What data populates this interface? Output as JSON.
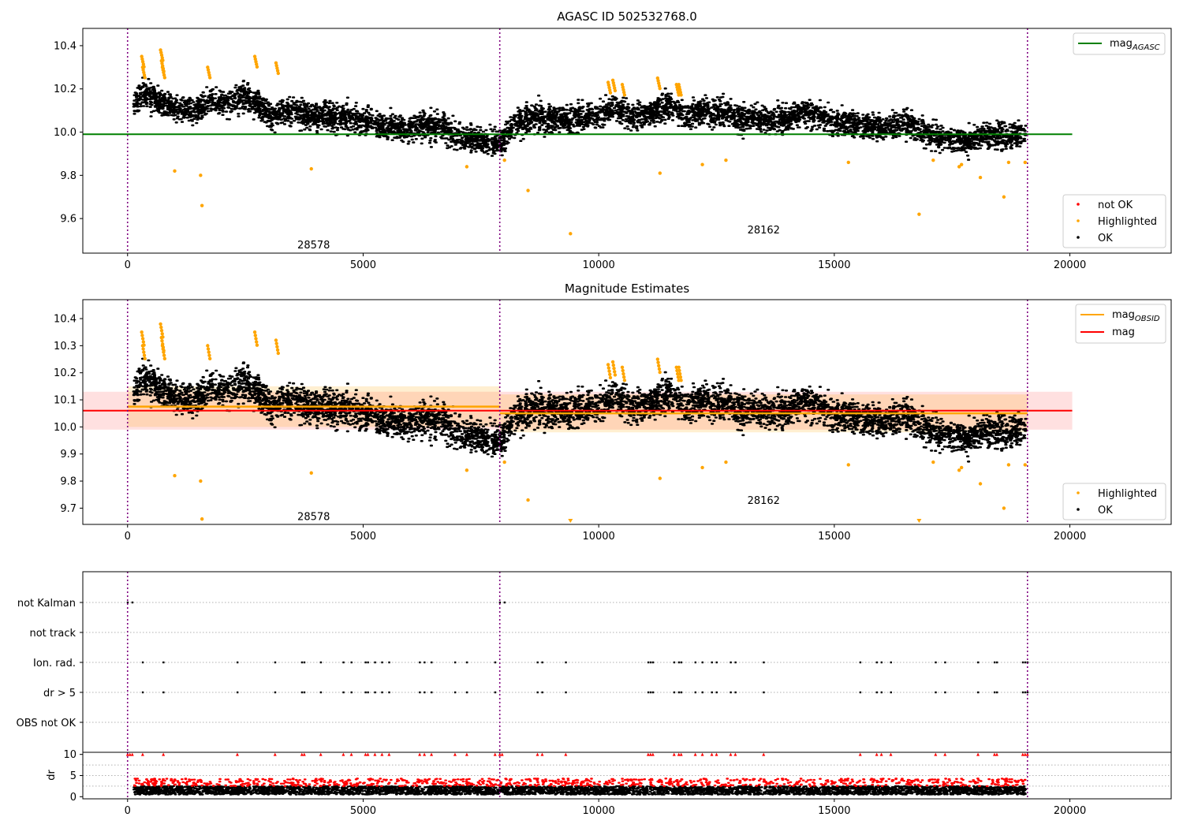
{
  "chart_data": [
    {
      "type": "scatter",
      "title": "AGASC ID 502532768.0",
      "xlim": [
        -950,
        22150
      ],
      "ylim": [
        9.44,
        10.48
      ],
      "xticks": [
        0,
        5000,
        10000,
        15000,
        20000
      ],
      "yticks": [
        9.6,
        9.8,
        10.0,
        10.2,
        10.4
      ],
      "xtick_labels": [
        "0",
        "5000",
        "10000",
        "15000",
        "20000"
      ],
      "ytick_labels": [
        "9.6",
        "9.8",
        "10.0",
        "10.2",
        "10.4"
      ],
      "obsid_boundaries": [
        0,
        7900,
        19100
      ],
      "obsid_labels": [
        {
          "text": "28578",
          "x": 3950,
          "y": 9.48
        },
        {
          "text": "28162",
          "x": 13500,
          "y": 9.55
        }
      ],
      "mag_agasc": {
        "value": 9.99,
        "x_range": [
          -950,
          20050
        ],
        "color": "#008000"
      },
      "legend_lines": [
        {
          "name": "mag_AGASC",
          "base": "mag",
          "sub": "AGASC",
          "color": "#008000"
        }
      ],
      "legend_points": [
        {
          "name": "not OK",
          "color": "#ff0000"
        },
        {
          "name": "Highlighted",
          "color": "#ffa500"
        },
        {
          "name": "OK",
          "color": "#000000"
        }
      ],
      "series_ok": {
        "name": "OK",
        "color": "#000000",
        "x": [
          0,
          300,
          600,
          900,
          1200,
          1500,
          1800,
          2100,
          2400,
          2700,
          3000,
          3300,
          3600,
          3900,
          4200,
          4500,
          4800,
          5100,
          5400,
          5700,
          6000,
          6300,
          6600,
          6900,
          7200,
          7500,
          7900,
          8200,
          8500,
          8800,
          9100,
          9400,
          9700,
          10000,
          10300,
          10600,
          10900,
          11200,
          11500,
          11800,
          12100,
          12400,
          12700,
          13000,
          13300,
          13600,
          13900,
          14200,
          14500,
          14800,
          15100,
          15400,
          15700,
          16000,
          16300,
          16600,
          16900,
          17200,
          17500,
          17800,
          18100,
          18400,
          18700,
          19100
        ],
        "y": [
          10.08,
          10.17,
          10.12,
          10.11,
          10.1,
          10.11,
          10.15,
          10.13,
          10.14,
          10.12,
          10.07,
          10.1,
          10.09,
          10.07,
          10.06,
          10.05,
          10.04,
          10.05,
          10.03,
          10.02,
          10.02,
          10.01,
          10.0,
          9.98,
          9.97,
          9.96,
          9.95,
          10.03,
          10.04,
          10.05,
          10.06,
          10.06,
          10.07,
          10.08,
          10.1,
          10.06,
          10.06,
          10.1,
          10.13,
          10.07,
          10.09,
          10.07,
          10.08,
          10.05,
          10.07,
          10.05,
          10.06,
          10.08,
          10.06,
          10.04,
          10.04,
          10.03,
          10.03,
          10.02,
          10.02,
          10.01,
          9.99,
          9.98,
          9.96,
          9.96,
          9.98,
          9.96,
          9.96,
          9.99
        ]
      },
      "series_highlighted": {
        "name": "Highlighted",
        "color": "#ffa500",
        "x": [
          300,
          320,
          700,
          720,
          740,
          1700,
          2700,
          3150,
          1000,
          1550,
          1580,
          3900,
          7200,
          8000,
          8500,
          9400,
          10200,
          10300,
          10500,
          11250,
          11300,
          11650,
          11700,
          12200,
          12700,
          15300,
          16800,
          17100,
          17650,
          17700,
          18100,
          18600,
          18700,
          19050
        ],
        "y": [
          10.35,
          10.3,
          10.38,
          10.33,
          10.3,
          10.3,
          10.35,
          10.32,
          9.82,
          9.8,
          9.66,
          9.83,
          9.84,
          9.87,
          9.73,
          9.53,
          10.23,
          10.24,
          10.22,
          10.25,
          9.81,
          10.22,
          10.22,
          9.85,
          9.87,
          9.86,
          9.62,
          9.87,
          9.84,
          9.85,
          9.79,
          9.7,
          9.86,
          9.86
        ]
      }
    },
    {
      "type": "scatter",
      "title": "Magnitude Estimates",
      "xlim": [
        -950,
        22150
      ],
      "ylim": [
        9.64,
        10.47
      ],
      "xticks": [
        0,
        5000,
        10000,
        15000,
        20000
      ],
      "yticks": [
        9.7,
        9.8,
        9.9,
        10.0,
        10.1,
        10.2,
        10.3,
        10.4
      ],
      "xtick_labels": [
        "0",
        "5000",
        "10000",
        "15000",
        "20000"
      ],
      "ytick_labels": [
        "9.7",
        "9.8",
        "9.9",
        "10.0",
        "10.1",
        "10.2",
        "10.3",
        "10.4"
      ],
      "obsid_boundaries": [
        0,
        7900,
        19100
      ],
      "obsid_labels": [
        {
          "text": "28578",
          "x": 3950,
          "y": 9.67
        },
        {
          "text": "28162",
          "x": 13500,
          "y": 9.73
        }
      ],
      "mag": {
        "value": 10.06,
        "band": [
          9.99,
          10.13
        ],
        "x_range": [
          -950,
          20050
        ],
        "color": "#ff0000"
      },
      "mag_obsid": [
        {
          "obsid": "28578",
          "value": 10.075,
          "band": [
            10.0,
            10.15
          ],
          "x_range": [
            0,
            7900
          ]
        },
        {
          "obsid": "28162",
          "value": 10.05,
          "band": [
            9.98,
            10.12
          ],
          "x_range": [
            7900,
            19100
          ]
        }
      ],
      "legend_lines": [
        {
          "name": "mag_OBSID",
          "base": "mag",
          "sub": "OBSID",
          "color": "#ffa500"
        },
        {
          "name": "mag",
          "base": "mag",
          "sub": "",
          "color": "#ff0000"
        }
      ],
      "legend_points": [
        {
          "name": "Highlighted",
          "color": "#ffa500"
        },
        {
          "name": "OK",
          "color": "#000000"
        }
      ],
      "offscale_markers": [
        {
          "x": 9400,
          "color": "#ffa500"
        },
        {
          "x": 16800,
          "color": "#ffa500"
        }
      ]
    },
    {
      "type": "scatter",
      "title": "",
      "xlim": [
        -950,
        22150
      ],
      "flag_rows": [
        "not Kalman",
        "not track",
        "Ion. rad.",
        "dr > 5",
        "OBS not OK"
      ],
      "flag_points": {
        "not Kalman": [
          0,
          100,
          7900,
          8000
        ],
        "not track": [],
        "Ion. rad.": [
          320,
          760,
          2330,
          3130,
          3700,
          3750,
          4100,
          4580,
          4750,
          5050,
          5100,
          5250,
          5400,
          5550,
          6200,
          6300,
          6450,
          6950,
          7200,
          7800,
          8700,
          8800,
          9300,
          11050,
          11100,
          11150,
          11600,
          11700,
          11750,
          12050,
          12200,
          12400,
          12500,
          12800,
          12900,
          13500,
          15550,
          15900,
          16000,
          16200,
          17150,
          17350,
          18050,
          18400,
          18450,
          19000,
          19050,
          19100
        ],
        "dr > 5": [
          320,
          760,
          2330,
          3130,
          3700,
          3750,
          4100,
          4580,
          4750,
          5050,
          5100,
          5250,
          5400,
          5550,
          6200,
          6300,
          6450,
          6950,
          7200,
          7800,
          8700,
          8800,
          9300,
          11050,
          11100,
          11150,
          11600,
          11700,
          11750,
          12050,
          12200,
          12400,
          12500,
          12800,
          12900,
          13500,
          15550,
          15900,
          16000,
          16200,
          17150,
          17350,
          18050,
          18400,
          18450,
          19000,
          19050,
          19100
        ],
        "OBS not OK": []
      }
    },
    {
      "type": "scatter",
      "title": "",
      "ylabel": "dr",
      "xlim": [
        -950,
        22150
      ],
      "ylim": [
        -0.5,
        10.5
      ],
      "xticks": [
        0,
        5000,
        10000,
        15000,
        20000
      ],
      "yticks": [
        0,
        5,
        10
      ],
      "xtick_labels": [
        "0",
        "5000",
        "10000",
        "15000",
        "20000"
      ],
      "ytick_labels": [
        "0",
        "5",
        "10"
      ],
      "dr_typical": [
        0.5,
        2.5
      ],
      "dr_high_color": "#ff0000",
      "dr_high_markers_x": [
        0,
        50,
        100,
        320,
        760,
        2330,
        3130,
        3700,
        3750,
        4100,
        4580,
        4750,
        5050,
        5100,
        5250,
        5400,
        5550,
        6200,
        6300,
        6450,
        6950,
        7200,
        7800,
        7900,
        7950,
        8700,
        8800,
        9300,
        11050,
        11100,
        11150,
        11600,
        11700,
        11750,
        12050,
        12200,
        12400,
        12500,
        12800,
        12900,
        13500,
        15550,
        15900,
        16000,
        16200,
        17150,
        17350,
        18050,
        18400,
        18450,
        19000,
        19050,
        19100
      ]
    }
  ]
}
